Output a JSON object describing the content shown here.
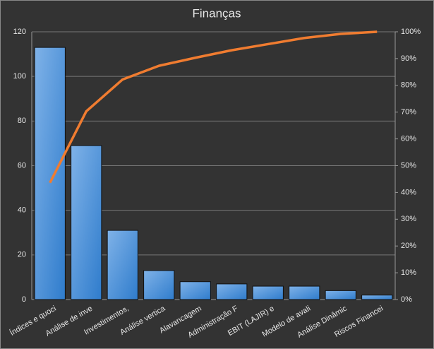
{
  "chart_data": {
    "type": "pareto",
    "title": "Finanças",
    "categories": [
      "Índices e quoci",
      "Análise de inve",
      "Investimentos,",
      "Análise vertica",
      "Alavancagem",
      "Administração F",
      "EBIT (LAJIR) e",
      "Modelo de avali",
      "Análise Dinâmic",
      "Riscos Financei"
    ],
    "series": [
      {
        "type": "bar",
        "color": "#4a90d9",
        "values": [
          113,
          69,
          31,
          13,
          8,
          7,
          6,
          6,
          4,
          2
        ]
      },
      {
        "type": "line",
        "axis": "y2",
        "color": "#f07c30",
        "values": [
          43.6,
          70.3,
          82.2,
          87.3,
          90.3,
          93.1,
          95.4,
          97.7,
          99.2,
          100
        ]
      }
    ],
    "ylim": [
      0,
      120
    ],
    "yticks": [
      0,
      20,
      40,
      60,
      80,
      100,
      120
    ],
    "y2lim": [
      0,
      100
    ],
    "y2ticks": [
      {
        "value": 0,
        "label": "0%"
      },
      {
        "value": 10,
        "label": "10%"
      },
      {
        "value": 20,
        "label": "20%"
      },
      {
        "value": 30,
        "label": "30%"
      },
      {
        "value": 40,
        "label": "40%"
      },
      {
        "value": 50,
        "label": "50%"
      },
      {
        "value": 60,
        "label": "60%"
      },
      {
        "value": 70,
        "label": "70%"
      },
      {
        "value": 80,
        "label": "80%"
      },
      {
        "value": 90,
        "label": "90%"
      },
      {
        "value": 100,
        "label": "100%"
      }
    ],
    "grid": true
  }
}
